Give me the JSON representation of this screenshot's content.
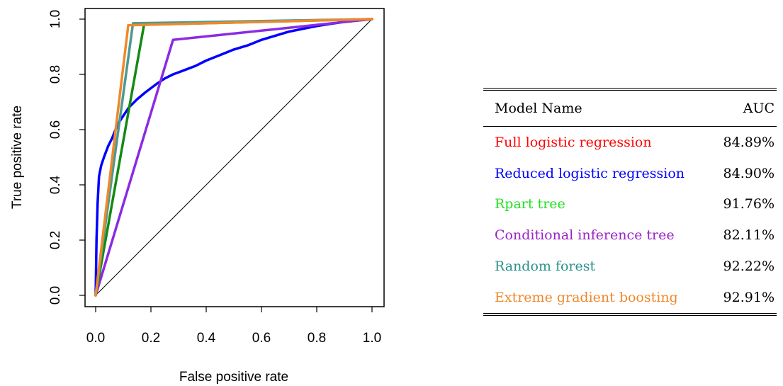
{
  "chart_data": {
    "type": "line",
    "xlabel": "False positive rate",
    "ylabel": "True positive rate",
    "xlim": [
      0,
      1
    ],
    "ylim": [
      0,
      1
    ],
    "xticks": [
      "0.0",
      "0.2",
      "0.4",
      "0.6",
      "0.8",
      "1.0"
    ],
    "yticks": [
      "0.0",
      "0.2",
      "0.4",
      "0.6",
      "0.8",
      "1.0"
    ],
    "grid": false,
    "reference_line": {
      "x": [
        0,
        1
      ],
      "y": [
        0,
        1
      ]
    },
    "series": [
      {
        "color": "#0000ff",
        "x": [
          0,
          0.003,
          0.007,
          0.012,
          0.02,
          0.03,
          0.045,
          0.06,
          0.08,
          0.1,
          0.12,
          0.15,
          0.18,
          0.2,
          0.22,
          0.25,
          0.28,
          0.32,
          0.36,
          0.4,
          0.45,
          0.5,
          0.55,
          0.6,
          0.65,
          0.7,
          0.75,
          0.8,
          0.85,
          0.9,
          0.95,
          1.0
        ],
        "y": [
          0,
          0.2,
          0.33,
          0.43,
          0.47,
          0.5,
          0.54,
          0.57,
          0.62,
          0.65,
          0.68,
          0.71,
          0.735,
          0.75,
          0.765,
          0.785,
          0.8,
          0.815,
          0.83,
          0.85,
          0.87,
          0.89,
          0.905,
          0.925,
          0.94,
          0.955,
          0.965,
          0.975,
          0.983,
          0.99,
          0.995,
          1.0
        ]
      },
      {
        "color": "#8a2be2",
        "x": [
          0,
          0.28,
          1
        ],
        "y": [
          0,
          0.925,
          1
        ]
      },
      {
        "color": "#138a13",
        "x": [
          0,
          0.175,
          1
        ],
        "y": [
          0,
          0.98,
          1
        ]
      },
      {
        "color": "#4a9a93",
        "x": [
          0,
          0.135,
          1
        ],
        "y": [
          0,
          0.985,
          1
        ]
      },
      {
        "color": "#f0882a",
        "x": [
          0,
          0.118,
          1
        ],
        "y": [
          0,
          0.978,
          1
        ]
      }
    ]
  },
  "table": {
    "header": {
      "model": "Model Name",
      "auc": "AUC"
    },
    "rows": [
      {
        "name": "Full logistic regression",
        "auc": "84.89%",
        "color": "#ff0000"
      },
      {
        "name": "Reduced logistic regression",
        "auc": "84.90%",
        "color": "#0000ff"
      },
      {
        "name": "Rpart tree",
        "auc": "91.76%",
        "color": "#22e022"
      },
      {
        "name": "Conditional inference tree",
        "auc": "82.11%",
        "color": "#9a22c8"
      },
      {
        "name": "Random forest",
        "auc": "92.22%",
        "color": "#2a9088"
      },
      {
        "name": "Extreme gradient boosting",
        "auc": "92.91%",
        "color": "#f0882a"
      }
    ]
  }
}
